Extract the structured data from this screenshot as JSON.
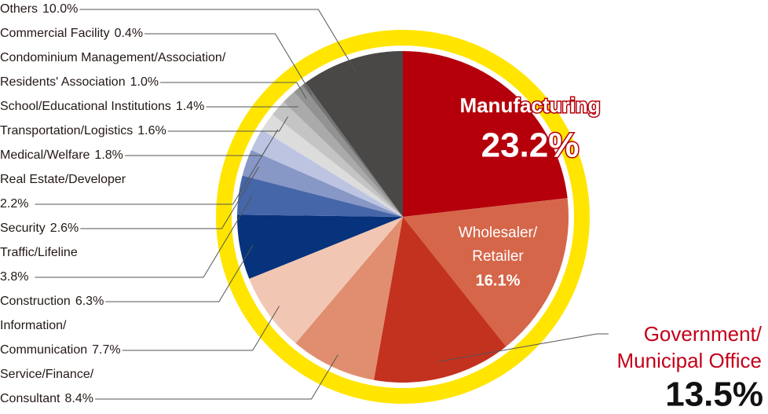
{
  "chart_data": {
    "type": "pie",
    "categories": [
      [
        "Manufacturing"
      ],
      [
        "Wholesaler/",
        "Retailer"
      ],
      [
        "Government/",
        "Municipal Office"
      ],
      [
        "Service/Finance/",
        "Consultant"
      ],
      [
        "Information/",
        "Communication"
      ],
      [
        "Construction"
      ],
      [
        "Traffic/Lifeline"
      ],
      [
        "Security"
      ],
      [
        "Real Estate/Developer"
      ],
      [
        "Medical/Welfare"
      ],
      [
        "Transportation/Logistics"
      ],
      [
        "School/Educational Institutions"
      ],
      [
        "Condominium Management/Association/",
        "Residents' Association"
      ],
      [
        "Commercial Facility"
      ],
      [
        "Others"
      ]
    ],
    "values": [
      23.2,
      16.1,
      13.5,
      8.4,
      7.7,
      6.3,
      3.8,
      2.6,
      2.2,
      1.8,
      1.6,
      1.4,
      1.0,
      0.4,
      10.0
    ],
    "value_labels": [
      "23.2%",
      "16.1%",
      "13.5%",
      "8.4%",
      "7.7%",
      "6.3%",
      "3.8%",
      "2.6%",
      "2.2%",
      "1.8%",
      "1.6%",
      "1.4%",
      "1.0%",
      "0.4%",
      "10.0%"
    ],
    "colors": [
      "#b5000c",
      "#d5664a",
      "#c3321f",
      "#e08e6f",
      "#f1c7b3",
      "#07327c",
      "#4566a8",
      "#8797c6",
      "#bcc4e2",
      "#dcdcdc",
      "#c4c4c4",
      "#aaaaaa",
      "#929292",
      "#747474",
      "#4a4846"
    ],
    "ring_color": "#ffe500"
  }
}
